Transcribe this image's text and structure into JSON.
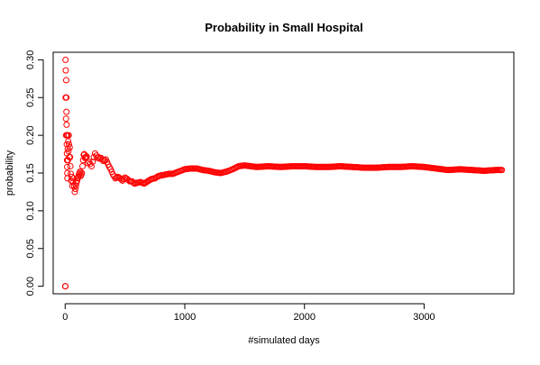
{
  "chart_data": {
    "type": "scatter",
    "title": "Probability in Small Hospital",
    "xlabel": "#simulated days",
    "ylabel": "probability",
    "xlim": [
      -100,
      3750
    ],
    "ylim": [
      -0.01,
      0.31
    ],
    "x_ticks": [
      0,
      1000,
      2000,
      3000
    ],
    "y_ticks": [
      0.0,
      0.05,
      0.1,
      0.15,
      0.2,
      0.25,
      0.3
    ],
    "x_tick_labels": [
      "0",
      "1000",
      "2000",
      "3000"
    ],
    "y_tick_labels": [
      "0.00",
      "0.05",
      "0.10",
      "0.15",
      "0.20",
      "0.25",
      "0.30"
    ],
    "grid": false,
    "marker": "open-circle",
    "color": "#ff0000",
    "series": [
      {
        "x": [
          1,
          2,
          3,
          4,
          5,
          6,
          7,
          8,
          9,
          10,
          11,
          12,
          13,
          14,
          15,
          16,
          17,
          18,
          19,
          20,
          22,
          24,
          26,
          28,
          30,
          32,
          35,
          38,
          41,
          44,
          47,
          50,
          55,
          60,
          65,
          70,
          75,
          80,
          85,
          90,
          95,
          100,
          105,
          110,
          115,
          120,
          125,
          130,
          135,
          140,
          145,
          150,
          155,
          160,
          165,
          170,
          175,
          180,
          190,
          200,
          210,
          220,
          230,
          240,
          250,
          260,
          270,
          280,
          290,
          300,
          320,
          340,
          360,
          380,
          400,
          420,
          440,
          460,
          480,
          500,
          520,
          540,
          560,
          580,
          600,
          630,
          660,
          690,
          720,
          750,
          780,
          810,
          840,
          870,
          900,
          950,
          1000,
          1050,
          1100,
          1150,
          1200,
          1250,
          1300,
          1350,
          1400,
          1450,
          1500,
          1550,
          1600,
          1700,
          1800,
          1900,
          2000,
          2100,
          2200,
          2300,
          2400,
          2500,
          2600,
          2700,
          2800,
          2900,
          3000,
          3100,
          3200,
          3300,
          3400,
          3500,
          3600,
          3650
        ],
        "y": [
          0.0,
          0.0,
          0.3,
          0.25,
          0.286,
          0.25,
          0.222,
          0.2,
          0.273,
          0.25,
          0.231,
          0.214,
          0.2,
          0.188,
          0.176,
          0.167,
          0.158,
          0.15,
          0.143,
          0.2,
          0.182,
          0.167,
          0.192,
          0.179,
          0.2,
          0.188,
          0.171,
          0.184,
          0.171,
          0.159,
          0.149,
          0.14,
          0.145,
          0.133,
          0.138,
          0.143,
          0.133,
          0.125,
          0.129,
          0.133,
          0.137,
          0.14,
          0.143,
          0.145,
          0.148,
          0.15,
          0.152,
          0.146,
          0.148,
          0.15,
          0.159,
          0.167,
          0.174,
          0.175,
          0.17,
          0.171,
          0.171,
          0.172,
          0.163,
          0.165,
          0.162,
          0.159,
          0.165,
          0.171,
          0.176,
          0.173,
          0.17,
          0.171,
          0.169,
          0.17,
          0.166,
          0.168,
          0.161,
          0.155,
          0.148,
          0.143,
          0.145,
          0.143,
          0.14,
          0.144,
          0.142,
          0.139,
          0.139,
          0.136,
          0.137,
          0.138,
          0.136,
          0.139,
          0.142,
          0.143,
          0.146,
          0.147,
          0.148,
          0.149,
          0.149,
          0.152,
          0.155,
          0.156,
          0.156,
          0.154,
          0.153,
          0.151,
          0.15,
          0.152,
          0.155,
          0.159,
          0.16,
          0.159,
          0.158,
          0.159,
          0.158,
          0.159,
          0.159,
          0.158,
          0.158,
          0.159,
          0.158,
          0.157,
          0.157,
          0.158,
          0.158,
          0.159,
          0.158,
          0.156,
          0.154,
          0.155,
          0.154,
          0.153,
          0.154,
          0.154
        ]
      }
    ]
  }
}
